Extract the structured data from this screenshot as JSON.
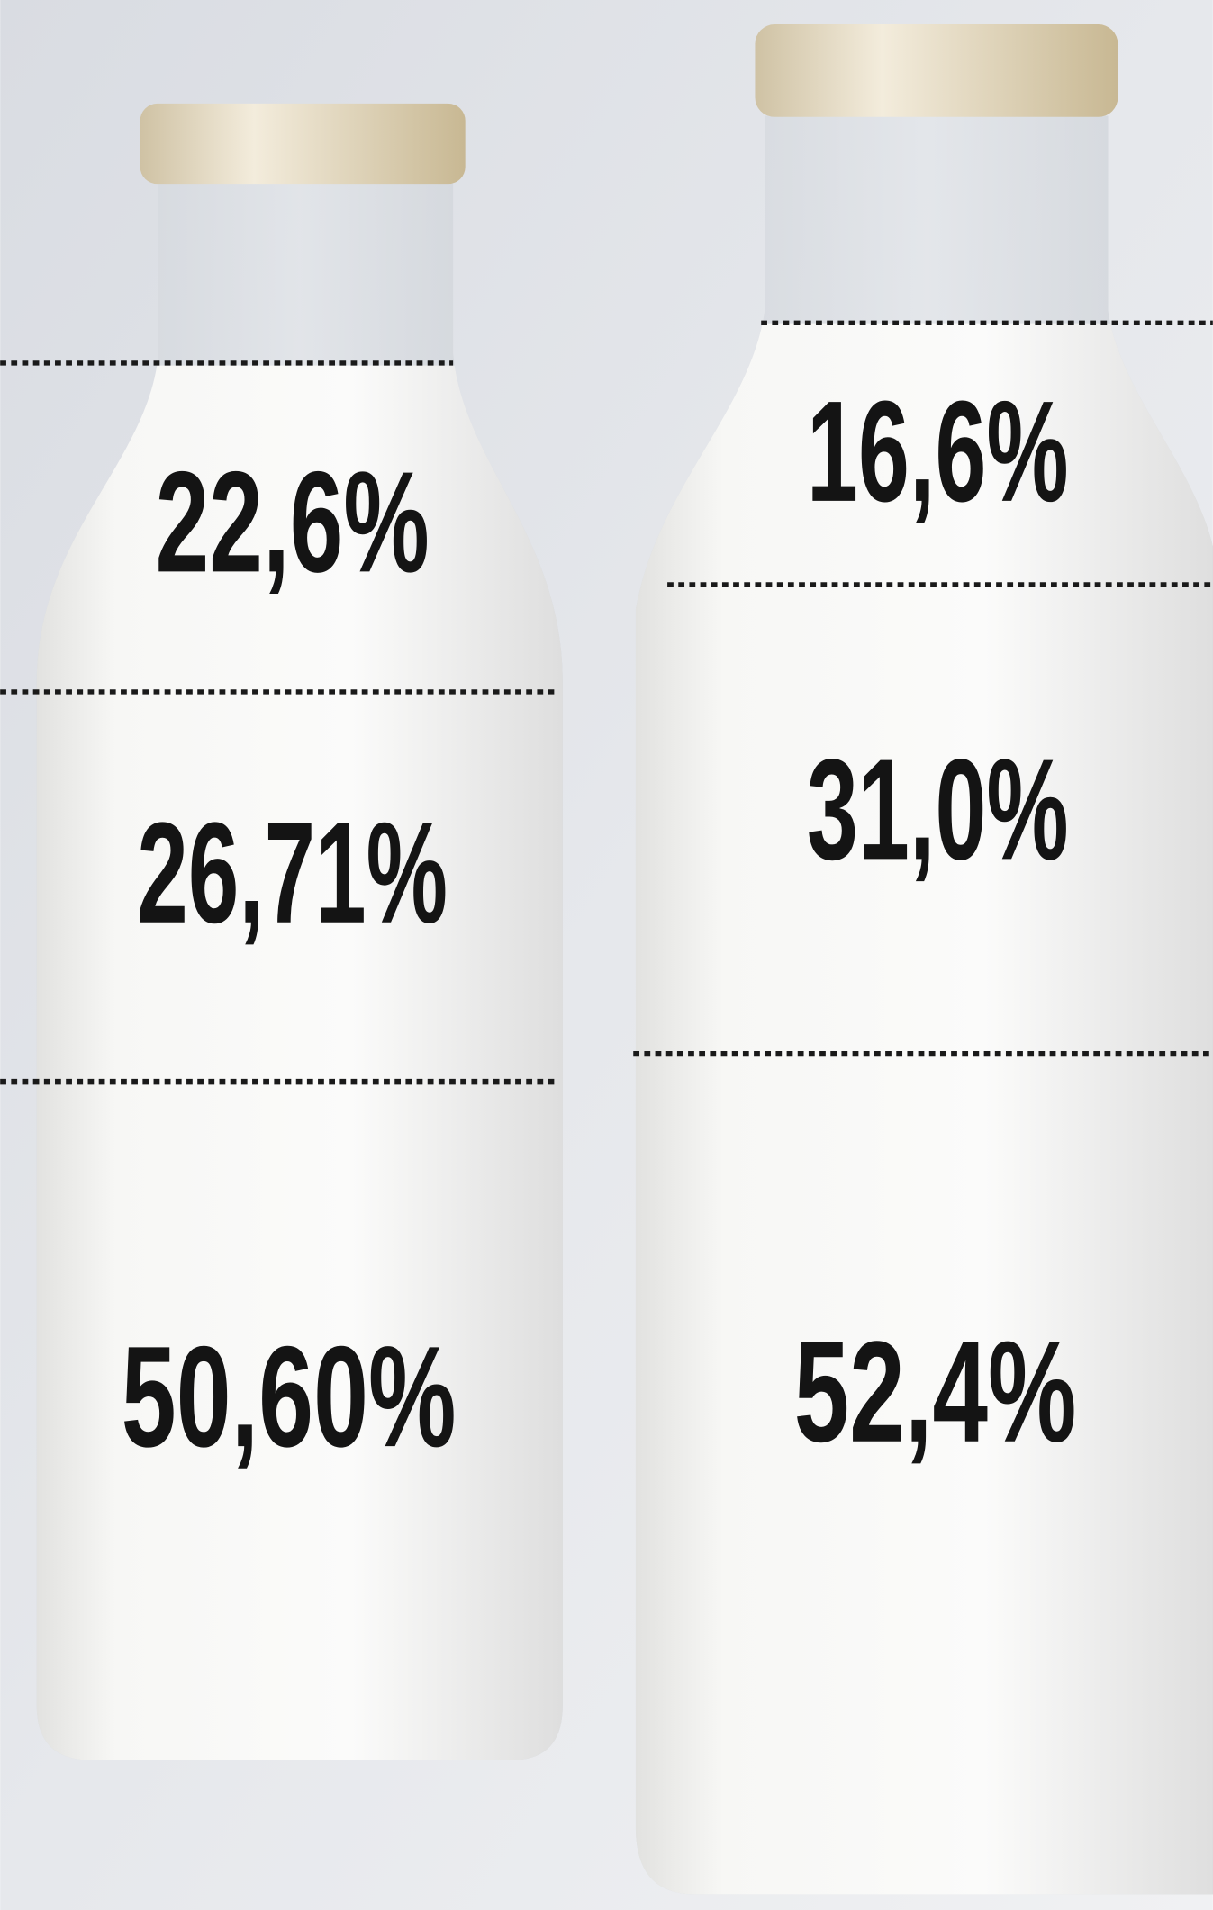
{
  "bottles": [
    {
      "segments": [
        "22,6%",
        "26,71%",
        "50,60%"
      ]
    },
    {
      "segments": [
        "16,6%",
        "31,0%",
        "52,4%"
      ]
    }
  ]
}
